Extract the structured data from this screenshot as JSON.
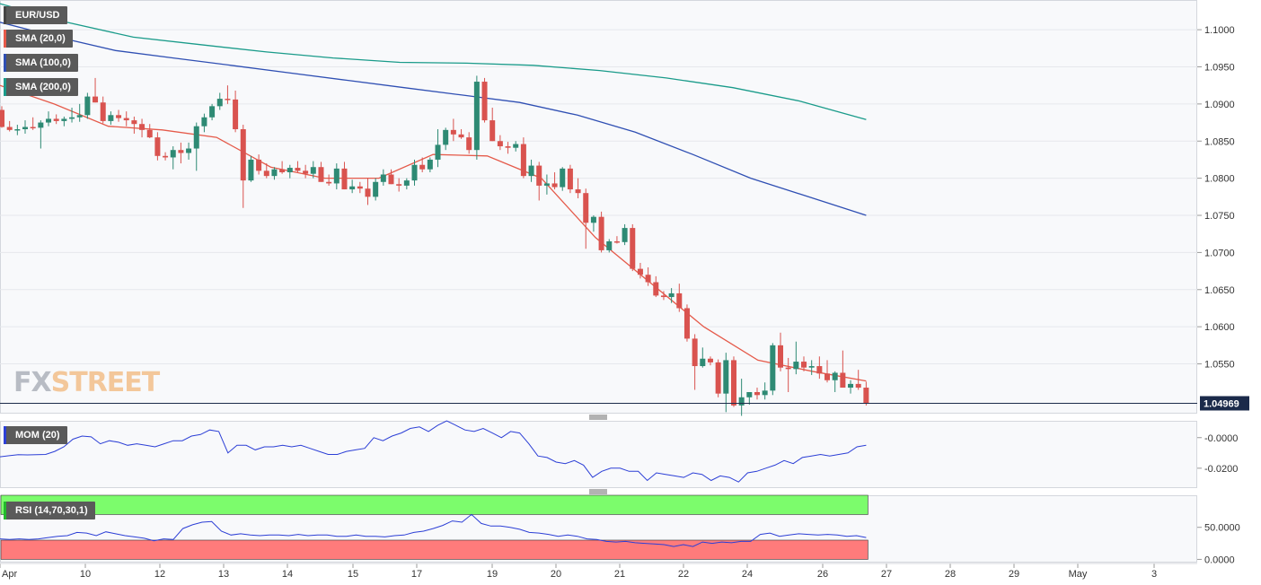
{
  "chart_data": [
    {
      "type": "candlestick",
      "panel": "price",
      "symbol": "EUR/USD",
      "ylim": [
        1.0483,
        1.104
      ],
      "y_ticks": [
        "1.1000",
        "1.0950",
        "1.0900",
        "1.0850",
        "1.0800",
        "1.0750",
        "1.0700",
        "1.0650",
        "1.0600",
        "1.0550"
      ],
      "last_price": "1.04969",
      "x_tick_labels": [
        "Apr",
        "10",
        "12",
        "13",
        "14",
        "15",
        "17",
        "19",
        "20",
        "21",
        "22",
        "24",
        "26",
        "27",
        "28",
        "29",
        "May",
        "3"
      ],
      "candles": [
        [
          1.0892,
          1.0897,
          1.0868,
          1.0869
        ],
        [
          1.0869,
          1.0877,
          1.0863,
          1.0865
        ],
        [
          1.0865,
          1.0872,
          1.0858,
          1.0866
        ],
        [
          1.0866,
          1.0878,
          1.086,
          1.0869
        ],
        [
          1.0869,
          1.0882,
          1.0865,
          1.0868
        ],
        [
          1.0868,
          1.0878,
          1.084,
          1.0875
        ],
        [
          1.0875,
          1.089,
          1.087,
          1.088
        ],
        [
          1.088,
          1.0886,
          1.0873,
          1.0877
        ],
        [
          1.0877,
          1.0883,
          1.087,
          1.088
        ],
        [
          1.088,
          1.0895,
          1.0875,
          1.0882
        ],
        [
          1.0882,
          1.09,
          1.0876,
          1.0885
        ],
        [
          1.0885,
          1.0915,
          1.088,
          1.091
        ],
        [
          1.091,
          1.0935,
          1.0902,
          1.0902
        ],
        [
          1.0902,
          1.091,
          1.0874,
          1.0877
        ],
        [
          1.0877,
          1.089,
          1.0872,
          1.0885
        ],
        [
          1.0885,
          1.0892,
          1.0876,
          1.0881
        ],
        [
          1.0881,
          1.089,
          1.087,
          1.0878
        ],
        [
          1.0878,
          1.0883,
          1.086,
          1.0873
        ],
        [
          1.0873,
          1.088,
          1.0855,
          1.0865
        ],
        [
          1.0865,
          1.0873,
          1.0854,
          1.0855
        ],
        [
          1.0855,
          1.0862,
          1.0824,
          1.083
        ],
        [
          1.083,
          1.0835,
          1.0824,
          1.0828
        ],
        [
          1.0828,
          1.0843,
          1.0812,
          1.0838
        ],
        [
          1.0838,
          1.0848,
          1.082,
          1.0834
        ],
        [
          1.0834,
          1.0848,
          1.0825,
          1.084
        ],
        [
          1.084,
          1.0875,
          1.081,
          1.087
        ],
        [
          1.087,
          1.0887,
          1.0862,
          1.0882
        ],
        [
          1.0882,
          1.09,
          1.0878,
          1.0897
        ],
        [
          1.0897,
          1.0915,
          1.0892,
          1.0907
        ],
        [
          1.0907,
          1.0925,
          1.09,
          1.0906
        ],
        [
          1.0906,
          1.0918,
          1.0862,
          1.0866
        ],
        [
          1.0866,
          1.0872,
          1.076,
          1.0797
        ],
        [
          1.0797,
          1.083,
          1.0795,
          1.0825
        ],
        [
          1.0825,
          1.0832,
          1.0805,
          1.081
        ],
        [
          1.081,
          1.082,
          1.08,
          1.0803
        ],
        [
          1.0803,
          1.0815,
          1.0798,
          1.0812
        ],
        [
          1.0812,
          1.0823,
          1.0806,
          1.0808
        ],
        [
          1.0808,
          1.0818,
          1.08,
          1.0814
        ],
        [
          1.0814,
          1.0823,
          1.0808,
          1.081
        ],
        [
          1.081,
          1.0818,
          1.08,
          1.0806
        ],
        [
          1.0806,
          1.0823,
          1.08,
          1.0815
        ],
        [
          1.0815,
          1.0822,
          1.0795,
          1.0795
        ],
        [
          1.0795,
          1.0805,
          1.079,
          1.0793
        ],
        [
          1.0793,
          1.082,
          1.0785,
          1.0813
        ],
        [
          1.0813,
          1.0822,
          1.0785,
          1.0785
        ],
        [
          1.0785,
          1.0798,
          1.078,
          1.0789
        ],
        [
          1.0789,
          1.0795,
          1.078,
          1.0786
        ],
        [
          1.0786,
          1.08,
          1.0764,
          1.0775
        ],
        [
          1.0775,
          1.08,
          1.077,
          1.0795
        ],
        [
          1.0795,
          1.0812,
          1.079,
          1.0805
        ],
        [
          1.0805,
          1.0812,
          1.0792,
          1.0792
        ],
        [
          1.0792,
          1.08,
          1.0782,
          1.079
        ],
        [
          1.079,
          1.08,
          1.0785,
          1.0797
        ],
        [
          1.0797,
          1.0825,
          1.079,
          1.0818
        ],
        [
          1.0818,
          1.0828,
          1.0808,
          1.0812
        ],
        [
          1.0812,
          1.0828,
          1.0808,
          1.0825
        ],
        [
          1.0825,
          1.0866,
          1.0815,
          1.0845
        ],
        [
          1.0845,
          1.0868,
          1.0838,
          1.0865
        ],
        [
          1.0865,
          1.088,
          1.085,
          1.0859
        ],
        [
          1.0859,
          1.0866,
          1.0853,
          1.0855
        ],
        [
          1.0855,
          1.0862,
          1.0833,
          1.0838
        ],
        [
          1.0838,
          1.0938,
          1.0825,
          1.093
        ],
        [
          1.093,
          1.0935,
          1.0875,
          1.0878
        ],
        [
          1.0878,
          1.0895,
          1.085,
          1.085
        ],
        [
          1.085,
          1.0858,
          1.0838,
          1.0843
        ],
        [
          1.0843,
          1.0849,
          1.0833,
          1.0841
        ],
        [
          1.0841,
          1.085,
          1.0836,
          1.0846
        ],
        [
          1.0846,
          1.0855,
          1.08,
          1.0803
        ],
        [
          1.0803,
          1.0825,
          1.0795,
          1.0817
        ],
        [
          1.0817,
          1.0822,
          1.077,
          1.079
        ],
        [
          1.079,
          1.0805,
          1.0778,
          1.0793
        ],
        [
          1.0793,
          1.0808,
          1.0785,
          1.0788
        ],
        [
          1.0788,
          1.0815,
          1.0783,
          1.0813
        ],
        [
          1.0813,
          1.0818,
          1.078,
          1.0785
        ],
        [
          1.0785,
          1.08,
          1.0773,
          1.078
        ],
        [
          1.078,
          1.0786,
          1.0705,
          1.074
        ],
        [
          1.074,
          1.075,
          1.0728,
          1.0748
        ],
        [
          1.0748,
          1.0755,
          1.07,
          1.0703
        ],
        [
          1.0703,
          1.0718,
          1.07,
          1.0715
        ],
        [
          1.0715,
          1.0722,
          1.0712,
          1.0714
        ],
        [
          1.0714,
          1.0738,
          1.071,
          1.0733
        ],
        [
          1.0733,
          1.0738,
          1.0675,
          1.0678
        ],
        [
          1.0678,
          1.0686,
          1.0665,
          1.067
        ],
        [
          1.067,
          1.068,
          1.0655,
          1.066
        ],
        [
          1.066,
          1.0668,
          1.064,
          1.0642
        ],
        [
          1.0642,
          1.0648,
          1.0636,
          1.064
        ],
        [
          1.064,
          1.0652,
          1.0632,
          1.0645
        ],
        [
          1.0645,
          1.0658,
          1.062,
          1.0625
        ],
        [
          1.0625,
          1.063,
          1.058,
          1.0584
        ],
        [
          1.0584,
          1.059,
          1.0515,
          1.0547
        ],
        [
          1.0547,
          1.0572,
          1.0545,
          1.0557
        ],
        [
          1.0557,
          1.056,
          1.0548,
          1.0552
        ],
        [
          1.0552,
          1.0556,
          1.0505,
          1.051
        ],
        [
          1.051,
          1.0565,
          1.0485,
          1.0555
        ],
        [
          1.0555,
          1.056,
          1.0492,
          1.0494
        ],
        [
          1.0494,
          1.053,
          1.048,
          1.0505
        ],
        [
          1.0505,
          1.0512,
          1.0495,
          1.0512
        ],
        [
          1.0512,
          1.0518,
          1.0502,
          1.0508
        ],
        [
          1.0508,
          1.0525,
          1.0502,
          1.0514
        ],
        [
          1.0514,
          1.0578,
          1.0508,
          1.0575
        ],
        [
          1.0575,
          1.0592,
          1.054,
          1.0545
        ],
        [
          1.0545,
          1.0558,
          1.0512,
          1.0543
        ],
        [
          1.0543,
          1.058,
          1.0536,
          1.0553
        ],
        [
          1.0553,
          1.056,
          1.054,
          1.0545
        ],
        [
          1.0545,
          1.0555,
          1.0535,
          1.0547
        ],
        [
          1.0547,
          1.056,
          1.053,
          1.0537
        ],
        [
          1.0537,
          1.0555,
          1.0525,
          1.0528
        ],
        [
          1.0528,
          1.054,
          1.0512,
          1.0538
        ],
        [
          1.0538,
          1.0568,
          1.0518,
          1.0518
        ],
        [
          1.0518,
          1.0528,
          1.051,
          1.0523
        ],
        [
          1.0523,
          1.0542,
          1.0515,
          1.0518
        ],
        [
          1.0518,
          1.0526,
          1.0494,
          1.0497
        ]
      ],
      "sma": [
        {
          "name": "SMA (20,0)",
          "color": "#e55a4a",
          "start": [
            1.0925,
            1.09,
            1.087,
            1.0865,
            1.0855,
            1.0815,
            1.08,
            1.08,
            1.0832,
            1.083,
            1.08,
            1.072,
            1.066,
            1.06,
            1.0555,
            1.054,
            1.0527
          ]
        },
        {
          "name": "SMA (100,0)",
          "color": "#2f4fb3",
          "start": [
            1.101,
            1.099,
            1.0972,
            1.0962,
            1.0952,
            1.0942,
            1.0932,
            1.0922,
            1.0912,
            1.0902,
            1.0885,
            1.0862,
            1.0832,
            1.08,
            1.0775,
            1.075
          ]
        },
        {
          "name": "SMA (200,0)",
          "color": "#1a9b8a",
          "start": [
            1.1035,
            1.101,
            1.099,
            1.098,
            1.097,
            1.0962,
            1.0956,
            1.0955,
            1.0952,
            1.0945,
            1.0935,
            1.0922,
            1.0904,
            1.0879
          ]
        }
      ]
    },
    {
      "type": "line",
      "panel": "momentum",
      "title": "MOM (20)",
      "color": "#2c3fd6",
      "ylim": [
        -0.033,
        0.011
      ],
      "y_ticks": [
        "-0.0000",
        "-0.0200"
      ],
      "series": [
        -0.0125,
        -0.0118,
        -0.0112,
        -0.0113,
        -0.0112,
        -0.011,
        -0.009,
        -0.006,
        -0.001,
        0.001,
        0.0005,
        -0.004,
        -0.002,
        -0.003,
        -0.005,
        -0.004,
        -0.005,
        -0.006,
        -0.004,
        -0.002,
        -0.002,
        0.001,
        0.002,
        0.005,
        0.004,
        -0.01,
        -0.005,
        -0.005,
        -0.008,
        -0.006,
        -0.006,
        -0.005,
        -0.006,
        -0.005,
        -0.007,
        -0.009,
        -0.011,
        -0.011,
        -0.009,
        -0.008,
        -0.007,
        0.0,
        -0.002,
        0.001,
        0.003,
        0.006,
        0.007,
        0.004,
        0.008,
        0.011,
        0.008,
        0.005,
        0.004,
        0.006,
        0.003,
        0.0,
        0.004,
        0.003,
        -0.004,
        -0.012,
        -0.013,
        -0.016,
        -0.017,
        -0.015,
        -0.018,
        -0.026,
        -0.022,
        -0.02,
        -0.02,
        -0.022,
        -0.022,
        -0.028,
        -0.023,
        -0.024,
        -0.025,
        -0.026,
        -0.023,
        -0.024,
        -0.028,
        -0.025,
        -0.026,
        -0.029,
        -0.023,
        -0.022,
        -0.02,
        -0.018,
        -0.015,
        -0.017,
        -0.013,
        -0.012,
        -0.011,
        -0.012,
        -0.011,
        -0.01,
        -0.006,
        -0.005
      ]
    },
    {
      "type": "line",
      "panel": "rsi",
      "title": "RSI (14,70,30,1)",
      "color": "#2c3fd6",
      "ylim": [
        -5,
        100
      ],
      "y_ticks": [
        "50.0000",
        "0.0000"
      ],
      "overbought": 70,
      "oversold": 30,
      "series": [
        32,
        31,
        32,
        31,
        32,
        34,
        36,
        37,
        42,
        41,
        37,
        43,
        40,
        37,
        35,
        33,
        29,
        32,
        31,
        48,
        54,
        58,
        59,
        44,
        38,
        40,
        38,
        37,
        38,
        38,
        37,
        39,
        37,
        38,
        38,
        36,
        36,
        38,
        36,
        36,
        35,
        37,
        38,
        42,
        44,
        48,
        53,
        60,
        58,
        70,
        56,
        52,
        52,
        50,
        47,
        42,
        41,
        39,
        36,
        38,
        36,
        32,
        31,
        28,
        27,
        28,
        26,
        25,
        24,
        23,
        20,
        23,
        20,
        27,
        25,
        27,
        26,
        28,
        28,
        39,
        41,
        36,
        38,
        40,
        39,
        38,
        39,
        38,
        36,
        37,
        34
      ]
    },
    {
      "type": "axis",
      "panel": "time",
      "x_tick_labels": [
        "Apr",
        "10",
        "12",
        "13",
        "14",
        "15",
        "17",
        "19",
        "20",
        "21",
        "22",
        "24",
        "26",
        "27",
        "28",
        "29",
        "May",
        "3"
      ]
    }
  ],
  "labels": {
    "symbol": "EUR/USD",
    "sma20": "SMA (20,0)",
    "sma100": "SMA (100,0)",
    "sma200": "SMA (200,0)",
    "mom": "MOM (20)",
    "rsi": "RSI (14,70,30,1)",
    "watermark_fx": "FX",
    "watermark_street": "STREET",
    "last_price": "1.04969"
  },
  "colors": {
    "bull": "#2e8a74",
    "bear": "#d9534f",
    "overbought_zone": "#7cfc6c",
    "oversold_zone": "#ff7b7b",
    "watermark_fx": "#b8bcc4",
    "watermark_street": "#f3c79a"
  }
}
